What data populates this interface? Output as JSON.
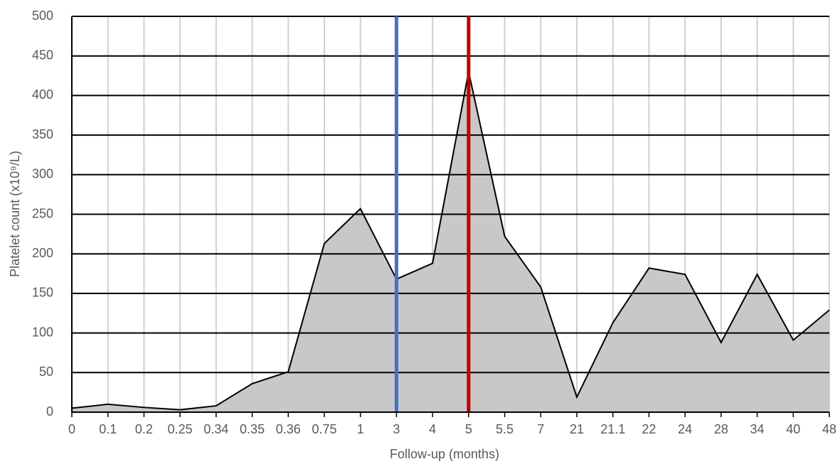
{
  "chart_data": {
    "type": "area",
    "x_label": "Follow-up (months)",
    "y_label": "Platelet count (x10⁹/L)",
    "categories": [
      "0",
      "0.1",
      "0.2",
      "0.25",
      "0.34",
      "0.35",
      "0.36",
      "0.75",
      "1",
      "3",
      "4",
      "5",
      "5.5",
      "7",
      "21",
      "21.1",
      "22",
      "24",
      "28",
      "34",
      "40",
      "48"
    ],
    "values": [
      5,
      10,
      6,
      3,
      8,
      36,
      51,
      213,
      257,
      168,
      188,
      430,
      222,
      158,
      19,
      113,
      182,
      174,
      88,
      174,
      91,
      129
    ],
    "color": "#c8c8c8",
    "line_color": "#000000",
    "ylim": [
      0,
      500
    ],
    "yticks": [
      0,
      50,
      100,
      150,
      200,
      250,
      300,
      350,
      400,
      450,
      500
    ],
    "grid": true,
    "reference_lines": [
      {
        "at": "3",
        "color": "#4472c4"
      },
      {
        "at": "5",
        "color": "#c00000"
      }
    ]
  }
}
